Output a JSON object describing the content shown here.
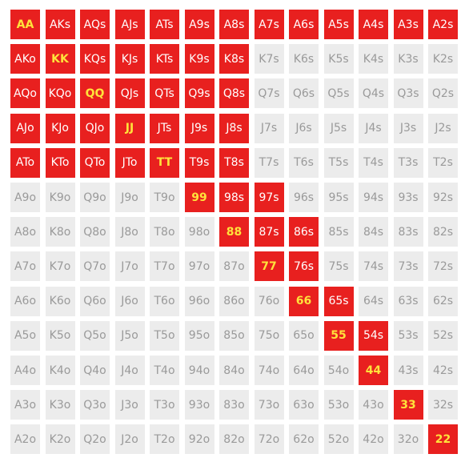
{
  "colors": {
    "raise": "#e8201f",
    "fold": "#ececec",
    "raise_text": "#ffffff",
    "pair_text": "#ffe23b",
    "fold_text": "#9a9a9a"
  },
  "ranks": [
    "A",
    "K",
    "Q",
    "J",
    "T",
    "9",
    "8",
    "7",
    "6",
    "5",
    "4",
    "3",
    "2"
  ],
  "grid": {
    "rows": [
      {
        "cells": [
          {
            "label": "AA",
            "selected": true
          },
          {
            "label": "AKs",
            "selected": true
          },
          {
            "label": "AQs",
            "selected": true
          },
          {
            "label": "AJs",
            "selected": true
          },
          {
            "label": "ATs",
            "selected": true
          },
          {
            "label": "A9s",
            "selected": true
          },
          {
            "label": "A8s",
            "selected": true
          },
          {
            "label": "A7s",
            "selected": true
          },
          {
            "label": "A6s",
            "selected": true
          },
          {
            "label": "A5s",
            "selected": true
          },
          {
            "label": "A4s",
            "selected": true
          },
          {
            "label": "A3s",
            "selected": true
          },
          {
            "label": "A2s",
            "selected": true
          }
        ]
      },
      {
        "cells": [
          {
            "label": "AKo",
            "selected": true
          },
          {
            "label": "KK",
            "selected": true
          },
          {
            "label": "KQs",
            "selected": true
          },
          {
            "label": "KJs",
            "selected": true
          },
          {
            "label": "KTs",
            "selected": true
          },
          {
            "label": "K9s",
            "selected": true
          },
          {
            "label": "K8s",
            "selected": true
          },
          {
            "label": "K7s",
            "selected": false
          },
          {
            "label": "K6s",
            "selected": false
          },
          {
            "label": "K5s",
            "selected": false
          },
          {
            "label": "K4s",
            "selected": false
          },
          {
            "label": "K3s",
            "selected": false
          },
          {
            "label": "K2s",
            "selected": false
          }
        ]
      },
      {
        "cells": [
          {
            "label": "AQo",
            "selected": true
          },
          {
            "label": "KQo",
            "selected": true
          },
          {
            "label": "QQ",
            "selected": true
          },
          {
            "label": "QJs",
            "selected": true
          },
          {
            "label": "QTs",
            "selected": true
          },
          {
            "label": "Q9s",
            "selected": true
          },
          {
            "label": "Q8s",
            "selected": true
          },
          {
            "label": "Q7s",
            "selected": false
          },
          {
            "label": "Q6s",
            "selected": false
          },
          {
            "label": "Q5s",
            "selected": false
          },
          {
            "label": "Q4s",
            "selected": false
          },
          {
            "label": "Q3s",
            "selected": false
          },
          {
            "label": "Q2s",
            "selected": false
          }
        ]
      },
      {
        "cells": [
          {
            "label": "AJo",
            "selected": true
          },
          {
            "label": "KJo",
            "selected": true
          },
          {
            "label": "QJo",
            "selected": true
          },
          {
            "label": "JJ",
            "selected": true
          },
          {
            "label": "JTs",
            "selected": true
          },
          {
            "label": "J9s",
            "selected": true
          },
          {
            "label": "J8s",
            "selected": true
          },
          {
            "label": "J7s",
            "selected": false
          },
          {
            "label": "J6s",
            "selected": false
          },
          {
            "label": "J5s",
            "selected": false
          },
          {
            "label": "J4s",
            "selected": false
          },
          {
            "label": "J3s",
            "selected": false
          },
          {
            "label": "J2s",
            "selected": false
          }
        ]
      },
      {
        "cells": [
          {
            "label": "ATo",
            "selected": true
          },
          {
            "label": "KTo",
            "selected": true
          },
          {
            "label": "QTo",
            "selected": true
          },
          {
            "label": "JTo",
            "selected": true
          },
          {
            "label": "TT",
            "selected": true
          },
          {
            "label": "T9s",
            "selected": true
          },
          {
            "label": "T8s",
            "selected": true
          },
          {
            "label": "T7s",
            "selected": false
          },
          {
            "label": "T6s",
            "selected": false
          },
          {
            "label": "T5s",
            "selected": false
          },
          {
            "label": "T4s",
            "selected": false
          },
          {
            "label": "T3s",
            "selected": false
          },
          {
            "label": "T2s",
            "selected": false
          }
        ]
      },
      {
        "cells": [
          {
            "label": "A9o",
            "selected": false
          },
          {
            "label": "K9o",
            "selected": false
          },
          {
            "label": "Q9o",
            "selected": false
          },
          {
            "label": "J9o",
            "selected": false
          },
          {
            "label": "T9o",
            "selected": false
          },
          {
            "label": "99",
            "selected": true
          },
          {
            "label": "98s",
            "selected": true
          },
          {
            "label": "97s",
            "selected": true
          },
          {
            "label": "96s",
            "selected": false
          },
          {
            "label": "95s",
            "selected": false
          },
          {
            "label": "94s",
            "selected": false
          },
          {
            "label": "93s",
            "selected": false
          },
          {
            "label": "92s",
            "selected": false
          }
        ]
      },
      {
        "cells": [
          {
            "label": "A8o",
            "selected": false
          },
          {
            "label": "K8o",
            "selected": false
          },
          {
            "label": "Q8o",
            "selected": false
          },
          {
            "label": "J8o",
            "selected": false
          },
          {
            "label": "T8o",
            "selected": false
          },
          {
            "label": "98o",
            "selected": false
          },
          {
            "label": "88",
            "selected": true
          },
          {
            "label": "87s",
            "selected": true
          },
          {
            "label": "86s",
            "selected": true
          },
          {
            "label": "85s",
            "selected": false
          },
          {
            "label": "84s",
            "selected": false
          },
          {
            "label": "83s",
            "selected": false
          },
          {
            "label": "82s",
            "selected": false
          }
        ]
      },
      {
        "cells": [
          {
            "label": "A7o",
            "selected": false
          },
          {
            "label": "K7o",
            "selected": false
          },
          {
            "label": "Q7o",
            "selected": false
          },
          {
            "label": "J7o",
            "selected": false
          },
          {
            "label": "T7o",
            "selected": false
          },
          {
            "label": "97o",
            "selected": false
          },
          {
            "label": "87o",
            "selected": false
          },
          {
            "label": "77",
            "selected": true
          },
          {
            "label": "76s",
            "selected": true
          },
          {
            "label": "75s",
            "selected": false
          },
          {
            "label": "74s",
            "selected": false
          },
          {
            "label": "73s",
            "selected": false
          },
          {
            "label": "72s",
            "selected": false
          }
        ]
      },
      {
        "cells": [
          {
            "label": "A6o",
            "selected": false
          },
          {
            "label": "K6o",
            "selected": false
          },
          {
            "label": "Q6o",
            "selected": false
          },
          {
            "label": "J6o",
            "selected": false
          },
          {
            "label": "T6o",
            "selected": false
          },
          {
            "label": "96o",
            "selected": false
          },
          {
            "label": "86o",
            "selected": false
          },
          {
            "label": "76o",
            "selected": false
          },
          {
            "label": "66",
            "selected": true
          },
          {
            "label": "65s",
            "selected": true
          },
          {
            "label": "64s",
            "selected": false
          },
          {
            "label": "63s",
            "selected": false
          },
          {
            "label": "62s",
            "selected": false
          }
        ]
      },
      {
        "cells": [
          {
            "label": "A5o",
            "selected": false
          },
          {
            "label": "K5o",
            "selected": false
          },
          {
            "label": "Q5o",
            "selected": false
          },
          {
            "label": "J5o",
            "selected": false
          },
          {
            "label": "T5o",
            "selected": false
          },
          {
            "label": "95o",
            "selected": false
          },
          {
            "label": "85o",
            "selected": false
          },
          {
            "label": "75o",
            "selected": false
          },
          {
            "label": "65o",
            "selected": false
          },
          {
            "label": "55",
            "selected": true
          },
          {
            "label": "54s",
            "selected": true
          },
          {
            "label": "53s",
            "selected": false
          },
          {
            "label": "52s",
            "selected": false
          }
        ]
      },
      {
        "cells": [
          {
            "label": "A4o",
            "selected": false
          },
          {
            "label": "K4o",
            "selected": false
          },
          {
            "label": "Q4o",
            "selected": false
          },
          {
            "label": "J4o",
            "selected": false
          },
          {
            "label": "T4o",
            "selected": false
          },
          {
            "label": "94o",
            "selected": false
          },
          {
            "label": "84o",
            "selected": false
          },
          {
            "label": "74o",
            "selected": false
          },
          {
            "label": "64o",
            "selected": false
          },
          {
            "label": "54o",
            "selected": false
          },
          {
            "label": "44",
            "selected": true
          },
          {
            "label": "43s",
            "selected": false
          },
          {
            "label": "42s",
            "selected": false
          }
        ]
      },
      {
        "cells": [
          {
            "label": "A3o",
            "selected": false
          },
          {
            "label": "K3o",
            "selected": false
          },
          {
            "label": "Q3o",
            "selected": false
          },
          {
            "label": "J3o",
            "selected": false
          },
          {
            "label": "T3o",
            "selected": false
          },
          {
            "label": "93o",
            "selected": false
          },
          {
            "label": "83o",
            "selected": false
          },
          {
            "label": "73o",
            "selected": false
          },
          {
            "label": "63o",
            "selected": false
          },
          {
            "label": "53o",
            "selected": false
          },
          {
            "label": "43o",
            "selected": false
          },
          {
            "label": "33",
            "selected": true
          },
          {
            "label": "32s",
            "selected": false
          }
        ]
      },
      {
        "cells": [
          {
            "label": "A2o",
            "selected": false
          },
          {
            "label": "K2o",
            "selected": false
          },
          {
            "label": "Q2o",
            "selected": false
          },
          {
            "label": "J2o",
            "selected": false
          },
          {
            "label": "T2o",
            "selected": false
          },
          {
            "label": "92o",
            "selected": false
          },
          {
            "label": "82o",
            "selected": false
          },
          {
            "label": "72o",
            "selected": false
          },
          {
            "label": "62o",
            "selected": false
          },
          {
            "label": "52o",
            "selected": false
          },
          {
            "label": "42o",
            "selected": false
          },
          {
            "label": "32o",
            "selected": false
          },
          {
            "label": "22",
            "selected": true
          }
        ]
      }
    ]
  }
}
